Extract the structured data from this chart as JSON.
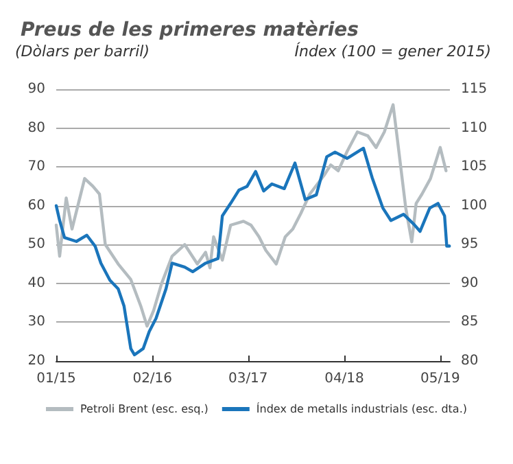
{
  "chart_data": {
    "type": "line",
    "title": "Preus de les primeres matèries",
    "ylabel": "(Dòlars per barril)",
    "y2label": "Índex (100 = gener 2015)",
    "xlim": [
      "2015-01-01",
      "2019-06-10"
    ],
    "xticks": [
      {
        "value": "2015-01-01",
        "label": "01/15"
      },
      {
        "value": "2016-02-01",
        "label": "02/16"
      },
      {
        "value": "2017-03-01",
        "label": "03/17"
      },
      {
        "value": "2018-04-01",
        "label": "04/18"
      },
      {
        "value": "2019-05-01",
        "label": "05/19"
      }
    ],
    "ylim": [
      20,
      90
    ],
    "yticks": [
      20,
      30,
      40,
      50,
      60,
      70,
      80,
      90
    ],
    "y2lim": [
      80,
      115
    ],
    "y2ticks": [
      80,
      85,
      90,
      95,
      100,
      105,
      110,
      115
    ],
    "grid": "y",
    "legend": "bottom",
    "marker": "none",
    "line_style": "solid",
    "series": [
      {
        "name": "Petroli Brent (esc. esq.)",
        "color": "#b4bcc0",
        "x": [
          "2015-01-01",
          "2015-01-15",
          "2015-02-11",
          "2015-03-07",
          "2015-04-28",
          "2015-06-01",
          "2015-06-28",
          "2015-07-22",
          "2015-09-13",
          "2015-11-04",
          "2015-12-16",
          "2016-01-10",
          "2016-02-06",
          "2016-03-10",
          "2016-04-22",
          "2016-06-13",
          "2016-08-04",
          "2016-09-07",
          "2016-09-25",
          "2016-10-10",
          "2016-11-15",
          "2016-12-19",
          "2017-02-10",
          "2017-03-13",
          "2017-04-15",
          "2017-05-13",
          "2017-06-25",
          "2017-08-01",
          "2017-09-01",
          "2017-10-04",
          "2017-11-10",
          "2018-01-10",
          "2018-02-04",
          "2018-03-07",
          "2018-04-13",
          "2018-05-25",
          "2018-07-07",
          "2018-08-10",
          "2018-09-13",
          "2018-10-19",
          "2018-11-04",
          "2018-12-10",
          "2019-01-04",
          "2019-01-22",
          "2019-02-15",
          "2019-03-22",
          "2019-05-01",
          "2019-05-25"
        ],
        "values": [
          55,
          47,
          62,
          54,
          67,
          65,
          63,
          50,
          45,
          41,
          34,
          29,
          33,
          40,
          47,
          50,
          45,
          48,
          44,
          52,
          46,
          55,
          56,
          55,
          52,
          48.5,
          45,
          52,
          54,
          58,
          63,
          68,
          70.5,
          69,
          74,
          79,
          78,
          75,
          79,
          86,
          78,
          59.5,
          50.7,
          60.6,
          63,
          67,
          75,
          69
        ]
      },
      {
        "name": "Índex de metalls industrials (esc. dta.)",
        "color": "#1a75bb",
        "axis": "y2",
        "x": [
          "2015-01-01",
          "2015-01-15",
          "2015-02-04",
          "2015-03-25",
          "2015-05-07",
          "2015-06-10",
          "2015-07-04",
          "2015-08-10",
          "2015-09-13",
          "2015-10-07",
          "2015-11-04",
          "2015-11-19",
          "2015-12-25",
          "2016-01-19",
          "2016-02-16",
          "2016-03-28",
          "2016-04-22",
          "2016-06-13",
          "2016-07-16",
          "2016-09-07",
          "2016-10-28",
          "2016-11-15",
          "2016-12-19",
          "2017-01-22",
          "2017-02-25",
          "2017-04-01",
          "2017-05-04",
          "2017-06-07",
          "2017-07-28",
          "2017-09-10",
          "2017-10-22",
          "2017-12-07",
          "2018-01-19",
          "2018-02-22",
          "2018-04-13",
          "2018-06-19",
          "2018-07-25",
          "2018-09-07",
          "2018-10-10",
          "2018-12-01",
          "2019-01-13",
          "2019-02-07",
          "2019-03-19",
          "2019-04-22",
          "2019-05-19",
          "2019-05-28",
          "2019-06-08"
        ],
        "values": [
          100,
          98.1,
          95.9,
          95.4,
          96.2,
          94.8,
          92.6,
          90.4,
          89.3,
          87.1,
          81.6,
          80.8,
          81.6,
          83.8,
          85.5,
          89.3,
          92.6,
          92.1,
          91.5,
          92.6,
          93.2,
          98.7,
          100.3,
          102,
          102.5,
          104.4,
          101.9,
          102.8,
          102.2,
          105.5,
          100.8,
          101.4,
          106.3,
          106.9,
          106.1,
          107.4,
          103.6,
          99.7,
          98.1,
          98.9,
          97.6,
          96.7,
          99.7,
          100.3,
          98.7,
          94.8,
          94.8
        ]
      }
    ]
  }
}
